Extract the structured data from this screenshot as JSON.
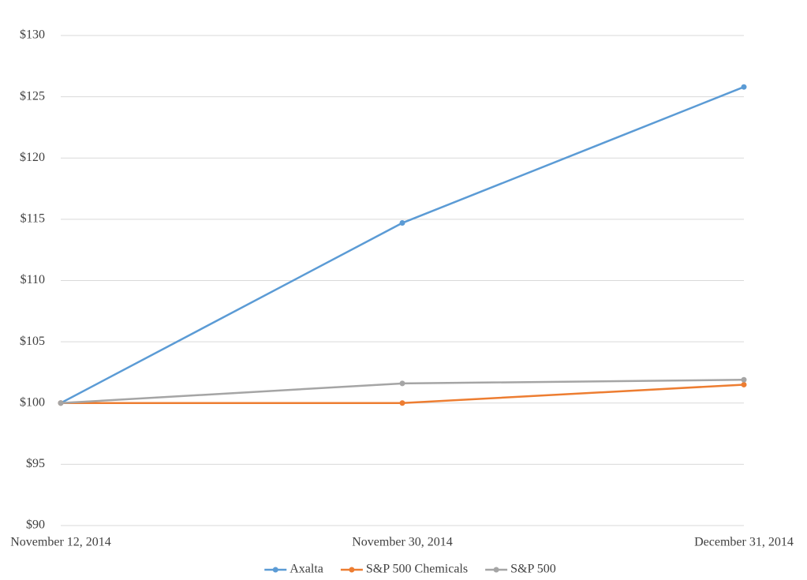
{
  "chart_data": {
    "type": "line",
    "categories": [
      "November 12, 2014",
      "November 30, 2014",
      "December 31, 2014"
    ],
    "series": [
      {
        "name": "Axalta",
        "color": "#5b9bd5",
        "values": [
          100,
          114.7,
          125.8
        ]
      },
      {
        "name": "S&P 500 Chemicals",
        "color": "#ed7d31",
        "values": [
          100,
          100,
          101.5
        ]
      },
      {
        "name": "S&P 500",
        "color": "#a5a5a5",
        "values": [
          100,
          101.6,
          101.9
        ]
      }
    ],
    "ylim": [
      90,
      130
    ],
    "yticks": [
      {
        "value": 90,
        "label": "$90"
      },
      {
        "value": 95,
        "label": "$95"
      },
      {
        "value": 100,
        "label": "$100"
      },
      {
        "value": 105,
        "label": "$105"
      },
      {
        "value": 110,
        "label": "$110"
      },
      {
        "value": 115,
        "label": "$115"
      },
      {
        "value": 120,
        "label": "$120"
      },
      {
        "value": 125,
        "label": "$125"
      },
      {
        "value": 130,
        "label": "$130"
      }
    ],
    "grid": true,
    "legend": "bottom"
  }
}
